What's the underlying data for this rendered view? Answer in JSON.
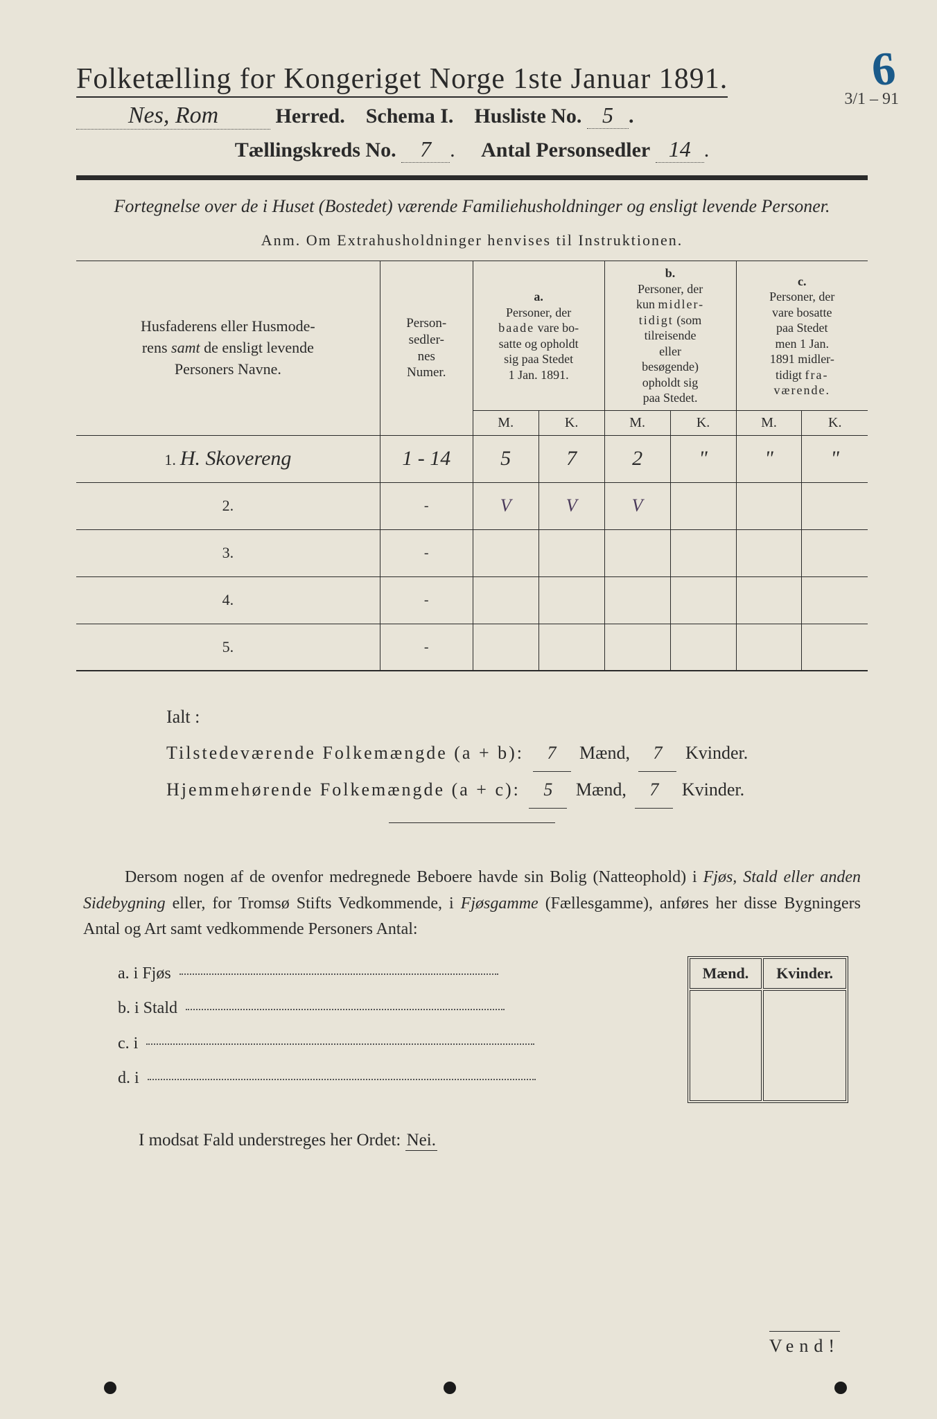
{
  "corner_number": "6",
  "corner_date": "3/1 – 91",
  "title_text": "Folketælling for Kongeriget Norge 1ste Januar 1891.",
  "line2": {
    "herred_hand": "Nes,  Rom",
    "herred_label": "Herred.",
    "schema_label": "Schema I.",
    "husliste_label": "Husliste No.",
    "husliste_hand": "5"
  },
  "line3": {
    "kreds_label": "Tællingskreds No.",
    "kreds_hand": "7",
    "antal_label": "Antal Personsedler",
    "antal_hand": "14"
  },
  "subtitle": "Fortegnelse over de i Huset (Bostedet) værende Familiehusholdninger og ensligt levende Personer.",
  "anm": "Anm.  Om Extrahusholdninger henvises til Instruktionen.",
  "table": {
    "col_name": "Husfaderens eller Husmoderens samt de ensligt levende Personers Navne.",
    "col_num": "Person-sedler-nes Numer.",
    "grp_a_head": "a.",
    "grp_a": "Personer, der baade vare bosatte og opholdt sig paa Stedet 1 Jan. 1891.",
    "grp_b_head": "b.",
    "grp_b": "Personer, der kun midlertidigt (som tilreisende eller besøgende) opholdt sig paa Stedet.",
    "grp_c_head": "c.",
    "grp_c": "Personer, der vare bosatte paa Stedet men 1 Jan. 1891 midlertidigt fraværende.",
    "m": "M.",
    "k": "K.",
    "rows": [
      {
        "n": "1.",
        "name": "H. Skovereng",
        "num": "1 - 14",
        "a_m": "5",
        "a_k": "7",
        "b_m": "2",
        "b_k": "\"",
        "c_m": "\"",
        "c_k": "\""
      },
      {
        "n": "2.",
        "name": "",
        "num": "-",
        "a_m": "V",
        "a_k": "V",
        "b_m": "V",
        "b_k": "",
        "c_m": "",
        "c_k": ""
      },
      {
        "n": "3.",
        "name": "",
        "num": "-",
        "a_m": "",
        "a_k": "",
        "b_m": "",
        "b_k": "",
        "c_m": "",
        "c_k": ""
      },
      {
        "n": "4.",
        "name": "",
        "num": "-",
        "a_m": "",
        "a_k": "",
        "b_m": "",
        "b_k": "",
        "c_m": "",
        "c_k": ""
      },
      {
        "n": "5.",
        "name": "",
        "num": "-",
        "a_m": "",
        "a_k": "",
        "b_m": "",
        "b_k": "",
        "c_m": "",
        "c_k": ""
      }
    ]
  },
  "ialt": {
    "head": "Ialt :",
    "l1_label": "Tilstedeværende Folkemængde (a + b):",
    "l1_m": "7",
    "l1_k": "7",
    "l2_label": "Hjemmehørende Folkemængde (a + c):",
    "l2_m": "5",
    "l2_k": "7",
    "maend": "Mænd,",
    "kvinder": "Kvinder."
  },
  "para_text": "Dersom nogen af de ovenfor medregnede Beboere havde sin Bolig (Natteophold) i Fjøs, Stald eller anden Sidebygning eller, for Tromsø Stifts Vedkommende, i Fjøsgamme (Fællesgamme), anføres her disse Bygningers Antal og Art samt vedkommende Personers Antal:",
  "side_box": {
    "m": "Mænd.",
    "k": "Kvinder."
  },
  "abcd": {
    "a": "a.  i      Fjøs",
    "b": "b.  i      Stald",
    "c": "c.  i",
    "d": "d.  i"
  },
  "footer": "I modsat Fald understreges her Ordet:",
  "nei": "Nei.",
  "vend": "Vend!"
}
